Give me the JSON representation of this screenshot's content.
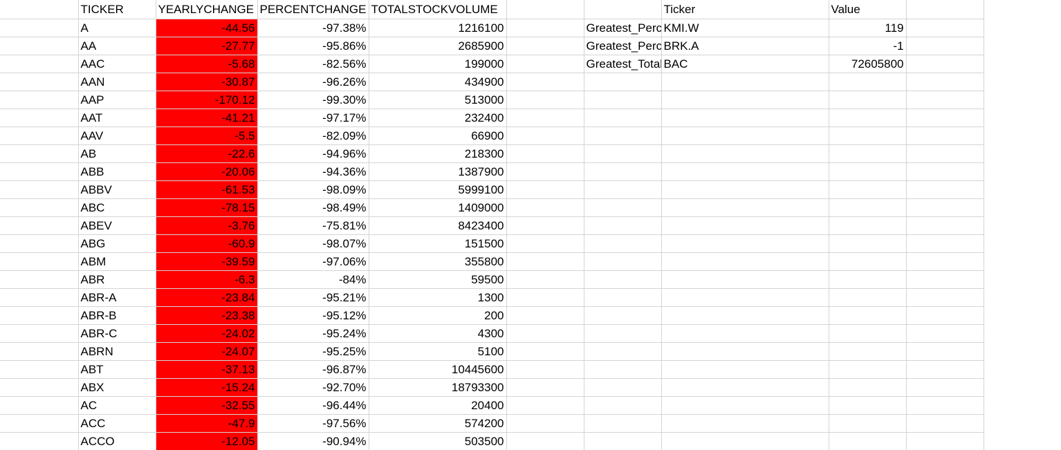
{
  "colors": {
    "negative_fill": "#ff0000",
    "gridline": "#d4d4d4"
  },
  "headers": {
    "ticker": "TICKER",
    "yearly_change": "YEARLYCHANGE",
    "percent_change": "PERCENTCHANGE",
    "total_stock_volume": "TOTALSTOCKVOLUME"
  },
  "rows": [
    {
      "ticker": "A",
      "yearly_change": "-44.56",
      "percent_change": "-97.38%",
      "volume": "1216100"
    },
    {
      "ticker": "AA",
      "yearly_change": "-27.77",
      "percent_change": "-95.86%",
      "volume": "2685900"
    },
    {
      "ticker": "AAC",
      "yearly_change": "-5.68",
      "percent_change": "-82.56%",
      "volume": "199000"
    },
    {
      "ticker": "AAN",
      "yearly_change": "-30.87",
      "percent_change": "-96.26%",
      "volume": "434900"
    },
    {
      "ticker": "AAP",
      "yearly_change": "-170.12",
      "percent_change": "-99.30%",
      "volume": "513000"
    },
    {
      "ticker": "AAT",
      "yearly_change": "-41.21",
      "percent_change": "-97.17%",
      "volume": "232400"
    },
    {
      "ticker": "AAV",
      "yearly_change": "-5.5",
      "percent_change": "-82.09%",
      "volume": "66900"
    },
    {
      "ticker": "AB",
      "yearly_change": "-22.6",
      "percent_change": "-94.96%",
      "volume": "218300"
    },
    {
      "ticker": "ABB",
      "yearly_change": "-20.06",
      "percent_change": "-94.36%",
      "volume": "1387900"
    },
    {
      "ticker": "ABBV",
      "yearly_change": "-61.53",
      "percent_change": "-98.09%",
      "volume": "5999100"
    },
    {
      "ticker": "ABC",
      "yearly_change": "-78.15",
      "percent_change": "-98.49%",
      "volume": "1409000"
    },
    {
      "ticker": "ABEV",
      "yearly_change": "-3.76",
      "percent_change": "-75.81%",
      "volume": "8423400"
    },
    {
      "ticker": "ABG",
      "yearly_change": "-60.9",
      "percent_change": "-98.07%",
      "volume": "151500"
    },
    {
      "ticker": "ABM",
      "yearly_change": "-39.59",
      "percent_change": "-97.06%",
      "volume": "355800"
    },
    {
      "ticker": "ABR",
      "yearly_change": "-6.3",
      "percent_change": "-84%",
      "volume": "59500"
    },
    {
      "ticker": "ABR-A",
      "yearly_change": "-23.84",
      "percent_change": "-95.21%",
      "volume": "1300"
    },
    {
      "ticker": "ABR-B",
      "yearly_change": "-23.38",
      "percent_change": "-95.12%",
      "volume": "200"
    },
    {
      "ticker": "ABR-C",
      "yearly_change": "-24.02",
      "percent_change": "-95.24%",
      "volume": "4300"
    },
    {
      "ticker": "ABRN",
      "yearly_change": "-24.07",
      "percent_change": "-95.25%",
      "volume": "5100"
    },
    {
      "ticker": "ABT",
      "yearly_change": "-37.13",
      "percent_change": "-96.87%",
      "volume": "10445600"
    },
    {
      "ticker": "ABX",
      "yearly_change": "-15.24",
      "percent_change": "-92.70%",
      "volume": "18793300"
    },
    {
      "ticker": "AC",
      "yearly_change": "-32.55",
      "percent_change": "-96.44%",
      "volume": "20400"
    },
    {
      "ticker": "ACC",
      "yearly_change": "-47.9",
      "percent_change": "-97.56%",
      "volume": "574200"
    },
    {
      "ticker": "ACCO",
      "yearly_change": "-12.05",
      "percent_change": "-90.94%",
      "volume": "503500"
    }
  ],
  "summary": {
    "header_ticker": "Ticker",
    "header_value": "Value",
    "items": [
      {
        "label": "Greatest_Percent_increase",
        "ticker": "KMI.W",
        "value": "119"
      },
      {
        "label": "Greatest_Percent_Decrease",
        "ticker": "BRK.A",
        "value": "-1"
      },
      {
        "label": "Greatest_Total_volume",
        "ticker": "BAC",
        "value": "72605800"
      }
    ]
  }
}
